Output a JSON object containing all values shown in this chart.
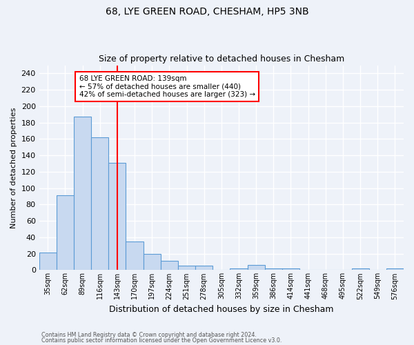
{
  "title1": "68, LYE GREEN ROAD, CHESHAM, HP5 3NB",
  "title2": "Size of property relative to detached houses in Chesham",
  "xlabel": "Distribution of detached houses by size in Chesham",
  "ylabel": "Number of detached properties",
  "bar_labels": [
    "35sqm",
    "62sqm",
    "89sqm",
    "116sqm",
    "143sqm",
    "170sqm",
    "197sqm",
    "224sqm",
    "251sqm",
    "278sqm",
    "305sqm",
    "332sqm",
    "359sqm",
    "386sqm",
    "414sqm",
    "441sqm",
    "468sqm",
    "495sqm",
    "522sqm",
    "549sqm",
    "576sqm"
  ],
  "bar_values": [
    21,
    91,
    187,
    162,
    131,
    35,
    20,
    11,
    5,
    5,
    0,
    2,
    6,
    2,
    2,
    0,
    0,
    0,
    2,
    0,
    2
  ],
  "bar_color": "#c8d9f0",
  "bar_edge_color": "#5b9bd5",
  "red_line_index": 4,
  "annotation_text": "68 LYE GREEN ROAD: 139sqm\n← 57% of detached houses are smaller (440)\n42% of semi-detached houses are larger (323) →",
  "annotation_box_color": "white",
  "annotation_box_edge_color": "red",
  "footer_line1": "Contains HM Land Registry data © Crown copyright and database right 2024.",
  "footer_line2": "Contains public sector information licensed under the Open Government Licence v3.0.",
  "ylim": [
    0,
    250
  ],
  "background_color": "#eef2f9",
  "grid_color": "white",
  "title1_fontsize": 10,
  "title2_fontsize": 9
}
